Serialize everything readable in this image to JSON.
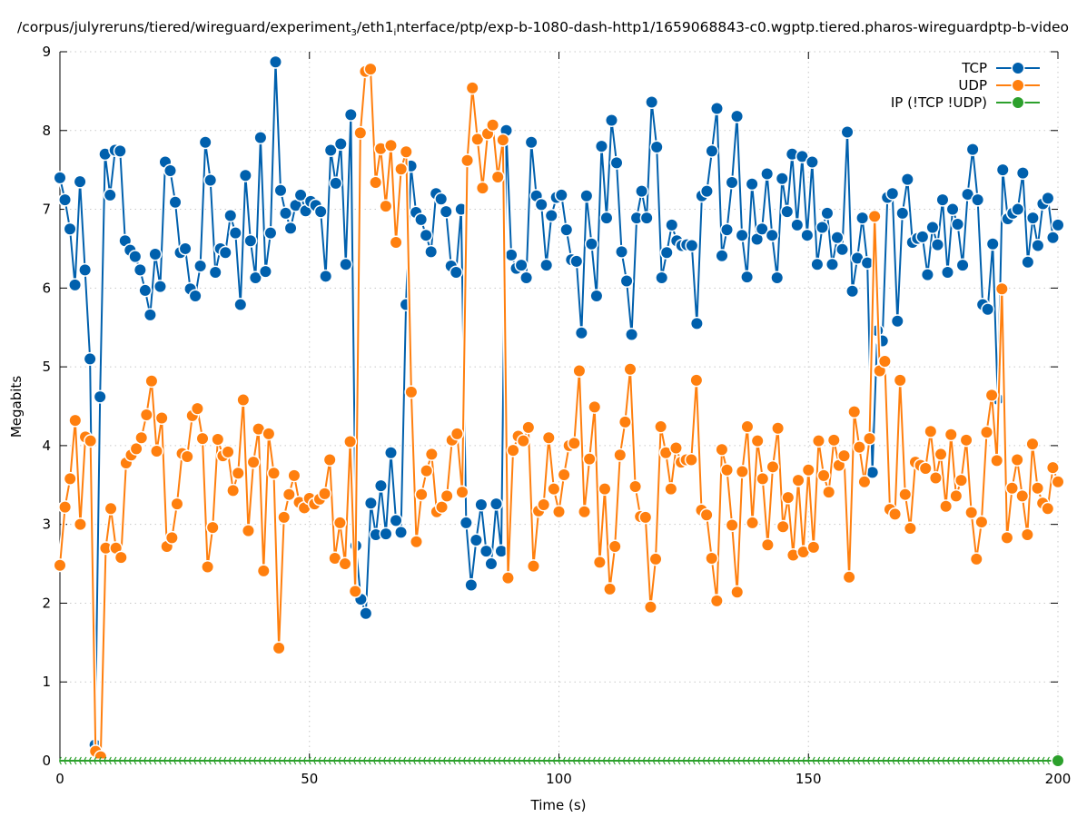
{
  "chart_data": {
    "type": "line",
    "title": "/corpus/julyreruns/tiered/wireguard/experiment",
    "title_sub1": "3",
    "title_mid": "/eth1",
    "title_sub2": "i",
    "title_end": "nterface/ptp/exp-b-1080-dash-http1/1659068843-c0.wgptp.tiered.pharos-wireguardptp-b-video",
    "xlabel": "Time (s)",
    "ylabel": "Megabits",
    "xlim": [
      0,
      200
    ],
    "ylim": [
      0,
      9
    ],
    "xticks": [
      "0",
      "50",
      "100",
      "150",
      "200"
    ],
    "xtick_values": [
      0,
      50,
      100,
      150,
      200
    ],
    "yticks": [
      "0",
      "1",
      "2",
      "3",
      "4",
      "5",
      "6",
      "7",
      "8",
      "9"
    ],
    "ytick_values": [
      0,
      1,
      2,
      3,
      4,
      5,
      6,
      7,
      8,
      9
    ],
    "grid": true,
    "legend_position": "top-right",
    "series": [
      {
        "name": "TCP",
        "color": "#0060ad",
        "x_end": 200,
        "values": [
          7.4,
          7.12,
          6.75,
          6.04,
          7.35,
          6.23,
          5.1,
          0.2,
          4.62,
          7.7,
          7.18,
          7.75,
          7.74,
          6.6,
          6.48,
          6.4,
          6.23,
          5.97,
          5.66,
          6.43,
          6.02,
          7.6,
          7.49,
          7.09,
          6.45,
          6.5,
          5.99,
          5.9,
          6.28,
          7.85,
          7.37,
          6.2,
          6.5,
          6.45,
          6.92,
          6.7,
          5.79,
          7.43,
          6.6,
          6.13,
          7.91,
          6.21,
          6.7,
          8.87,
          7.24,
          6.95,
          6.76,
          7.05,
          7.18,
          6.98,
          7.1,
          7.05,
          6.97,
          6.15,
          7.75,
          7.33,
          7.83,
          6.3,
          8.2,
          2.73,
          2.05,
          1.87,
          3.27,
          2.87,
          3.49,
          2.88,
          3.91,
          3.05,
          2.9,
          5.79,
          7.55,
          6.96,
          6.87,
          6.67,
          6.46,
          7.2,
          7.13,
          6.97,
          6.28,
          6.2,
          7.0,
          3.02,
          2.23,
          2.8,
          3.25,
          2.66,
          2.5,
          3.26,
          2.66,
          8.0,
          6.42,
          6.25,
          6.29,
          6.13,
          7.85,
          7.17,
          7.06,
          6.29,
          6.92,
          7.15,
          7.18,
          6.74,
          6.36,
          6.34,
          5.43,
          7.17,
          6.56,
          5.9,
          7.8,
          6.89,
          8.13,
          7.59,
          6.46,
          6.09,
          5.41,
          6.89,
          7.23,
          6.89,
          8.36,
          7.79,
          6.13,
          6.45,
          6.8,
          6.6,
          6.54,
          6.55,
          6.54,
          5.55,
          7.17,
          7.23,
          7.74,
          8.28,
          6.41,
          6.74,
          7.34,
          8.18,
          6.67,
          6.14,
          7.32,
          6.62,
          6.75,
          7.45,
          6.67,
          6.13,
          7.39,
          6.97,
          7.7,
          6.8,
          7.67,
          6.67,
          7.6,
          6.3,
          6.77,
          6.95,
          6.3,
          6.64,
          6.49,
          7.98,
          5.96,
          6.38,
          6.89,
          6.32,
          3.66,
          5.46,
          5.33,
          7.15,
          7.2,
          5.58,
          6.95,
          7.38,
          6.58,
          6.63,
          6.65,
          6.17,
          6.77,
          6.55,
          7.12,
          6.2,
          7.0,
          6.81,
          6.29,
          7.19,
          7.76,
          7.12,
          5.79,
          5.73,
          6.56,
          4.59,
          7.5,
          6.88,
          6.95,
          7.0,
          7.46,
          6.33,
          6.89,
          6.54,
          7.07,
          7.14,
          6.64,
          6.8
        ]
      },
      {
        "name": "UDP",
        "color": "#ff7f0e",
        "x_end": 200,
        "values": [
          2.48,
          3.22,
          3.58,
          4.32,
          3.0,
          4.11,
          4.06,
          0.12,
          0.05,
          2.7,
          3.2,
          2.7,
          2.58,
          3.78,
          3.88,
          3.96,
          4.1,
          4.39,
          4.82,
          3.93,
          4.35,
          2.72,
          2.83,
          3.26,
          3.9,
          3.86,
          4.38,
          4.47,
          4.09,
          2.46,
          2.96,
          4.08,
          3.87,
          3.92,
          3.43,
          3.65,
          4.58,
          2.92,
          3.79,
          4.21,
          2.41,
          4.15,
          3.65,
          1.43,
          3.09,
          3.38,
          3.62,
          3.28,
          3.21,
          3.33,
          3.26,
          3.32,
          3.39,
          3.82,
          2.57,
          3.02,
          2.5,
          4.05,
          2.15,
          7.97,
          8.75,
          8.78,
          7.34,
          7.77,
          7.04,
          7.81,
          6.58,
          7.51,
          7.73,
          4.68,
          2.78,
          3.38,
          3.68,
          3.89,
          3.16,
          3.22,
          3.36,
          4.07,
          4.15,
          3.41,
          7.62,
          8.54,
          7.89,
          7.27,
          7.96,
          8.07,
          7.41,
          7.88,
          2.32,
          3.94,
          4.12,
          4.06,
          4.23,
          2.47,
          3.17,
          3.25,
          4.1,
          3.45,
          3.16,
          3.63,
          4.0,
          4.03,
          4.95,
          3.16,
          3.83,
          4.49,
          2.52,
          3.45,
          2.18,
          2.72,
          3.88,
          4.3,
          4.97,
          3.48,
          3.1,
          3.09,
          1.95,
          2.56,
          4.24,
          3.91,
          3.45,
          3.97,
          3.79,
          3.82,
          3.82,
          4.83,
          3.18,
          3.12,
          2.57,
          2.03,
          3.95,
          3.69,
          2.99,
          2.14,
          3.67,
          4.24,
          3.02,
          4.06,
          3.58,
          2.74,
          3.73,
          4.22,
          2.97,
          3.34,
          2.61,
          3.56,
          2.65,
          3.69,
          2.71,
          4.06,
          3.62,
          3.41,
          4.07,
          3.75,
          3.87,
          2.33,
          4.43,
          3.98,
          3.54,
          4.09,
          6.91,
          4.95,
          5.07,
          3.19,
          3.13,
          4.83,
          3.38,
          2.95,
          3.79,
          3.75,
          3.71,
          4.18,
          3.59,
          3.89,
          3.23,
          4.14,
          3.36,
          3.56,
          4.07,
          3.15,
          2.56,
          3.03,
          4.17,
          4.64,
          3.81,
          5.99,
          2.83,
          3.46,
          3.82,
          3.36,
          2.87,
          4.02,
          3.46,
          3.27,
          3.2,
          3.72,
          3.54
        ]
      },
      {
        "name": "IP (!TCP  !UDP)",
        "color": "#2ca02c",
        "x_end": 200,
        "values_constant": 0,
        "count": 201
      }
    ]
  }
}
